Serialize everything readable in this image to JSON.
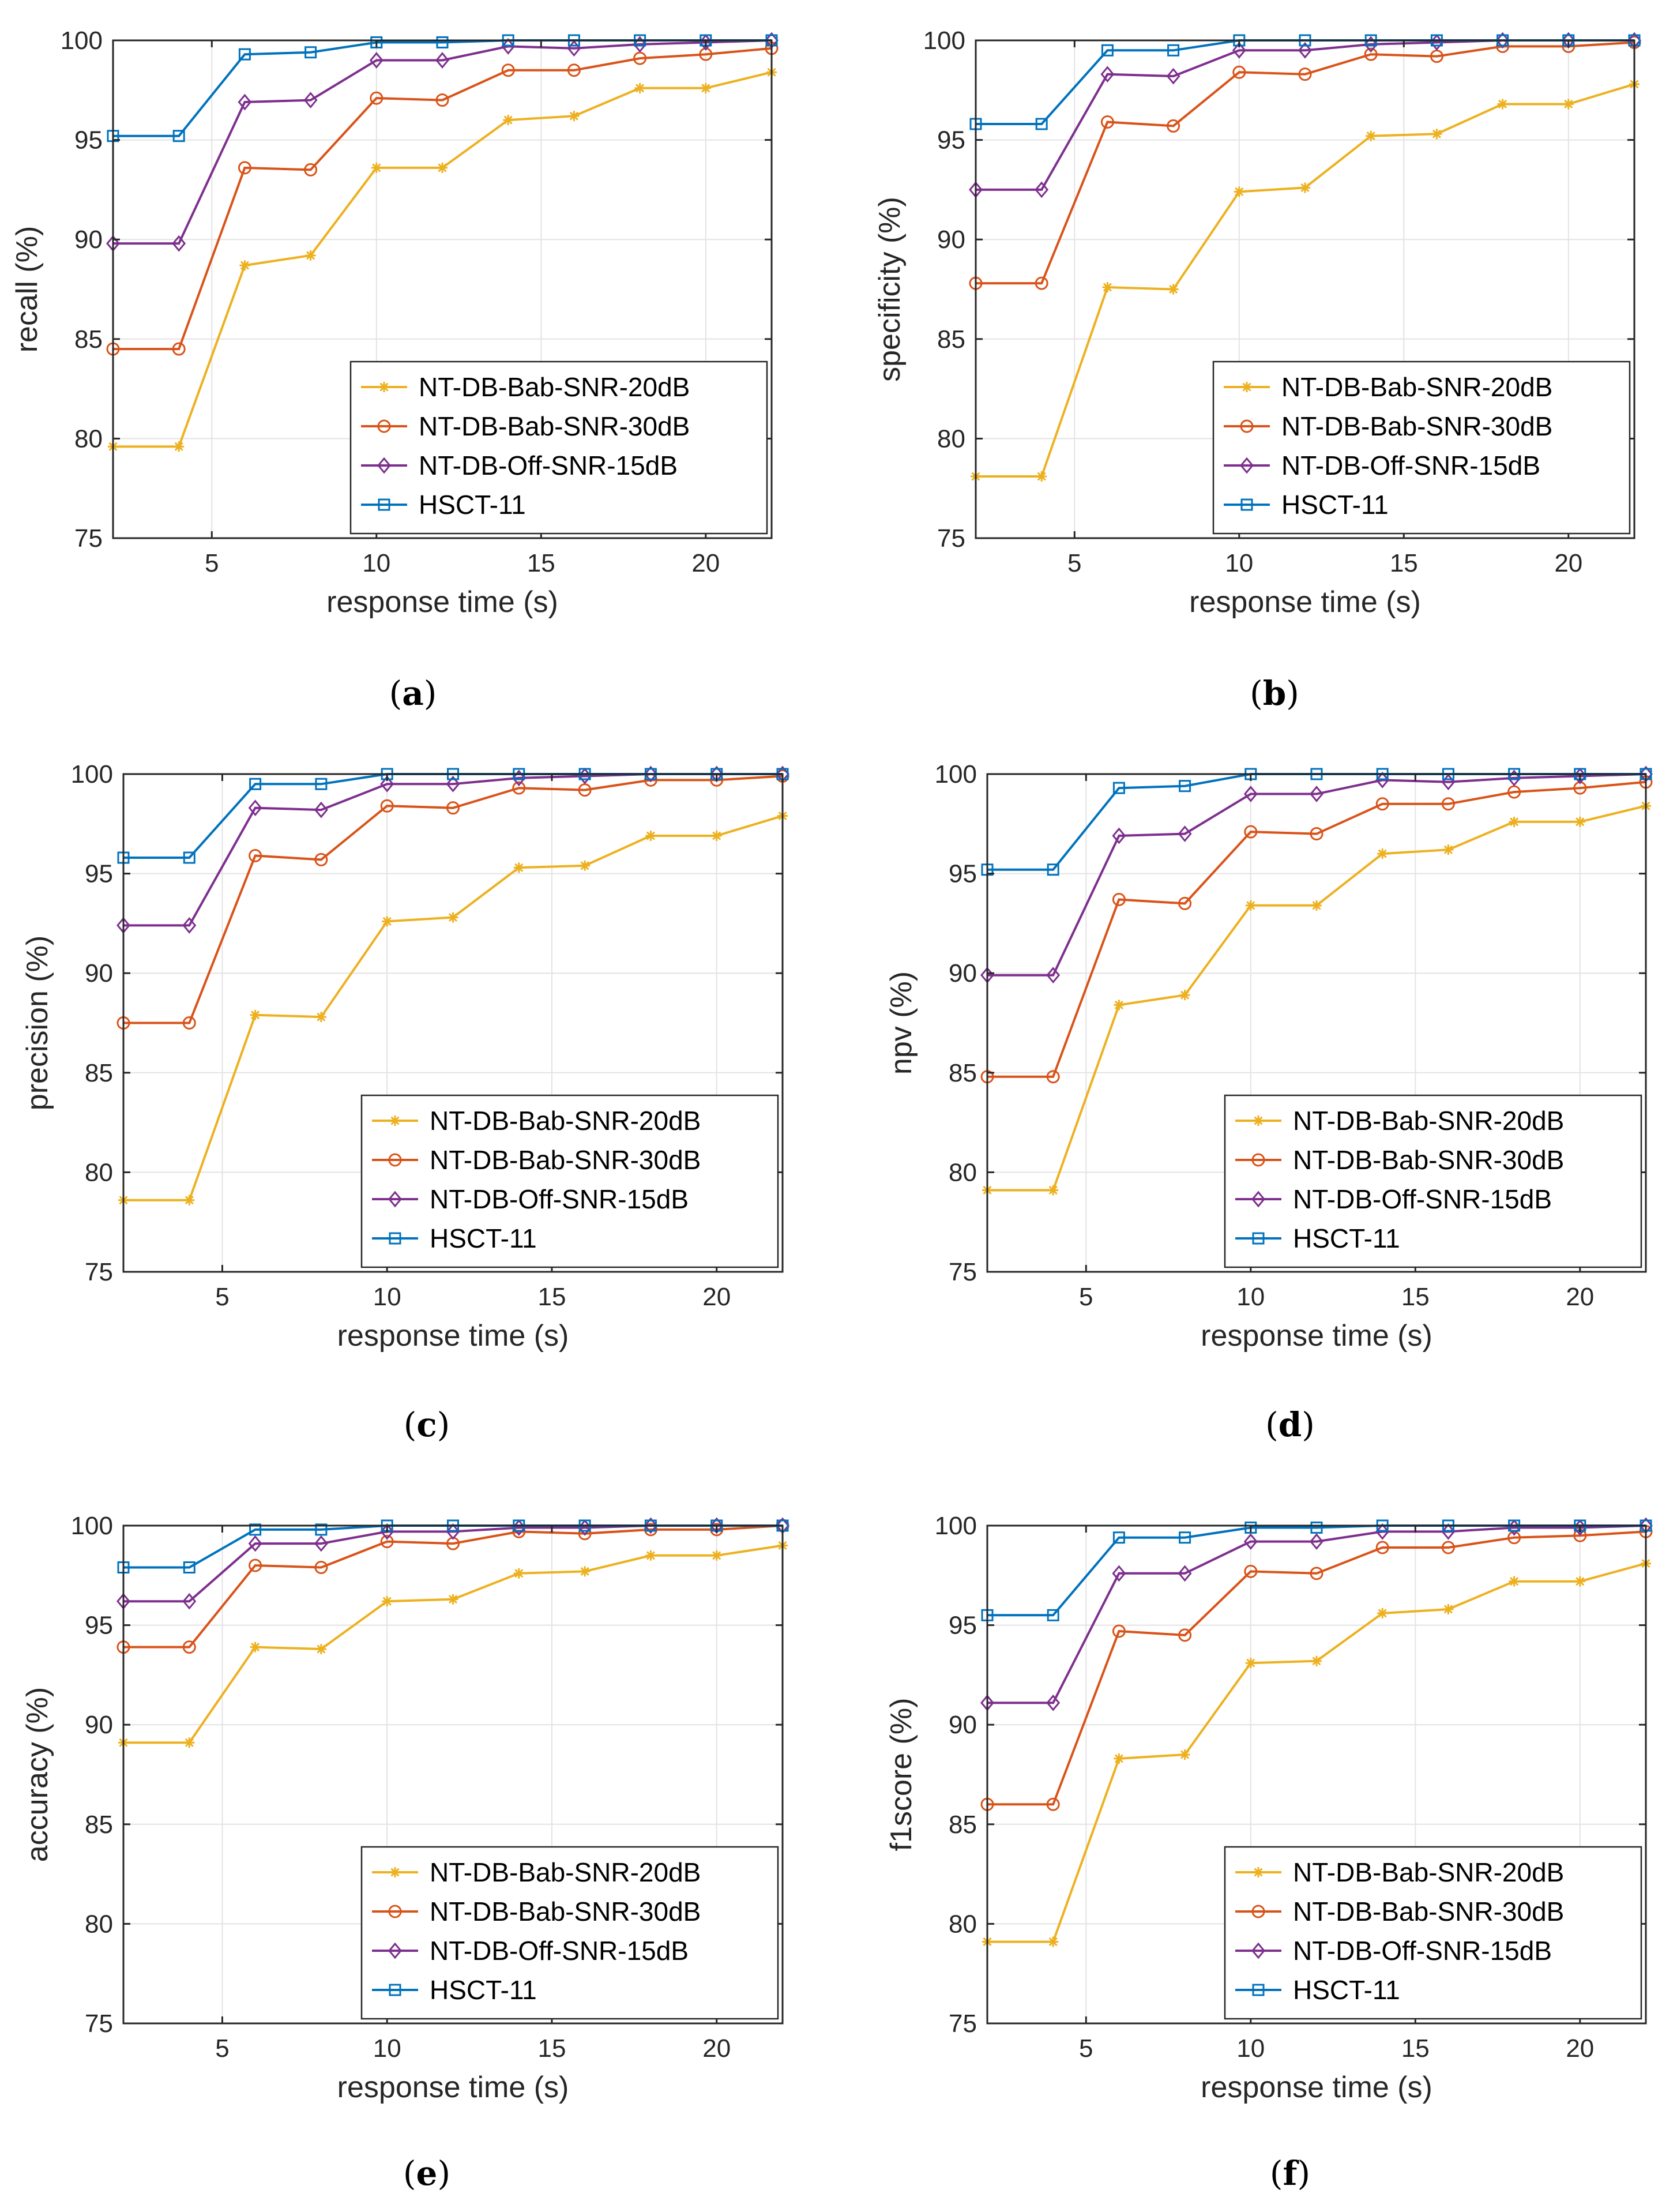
{
  "chart_data": [
    {
      "type": "line",
      "panel_label": "a",
      "xlabel": "response time (s)",
      "ylabel": "recall (%)",
      "xlim": [
        2,
        22
      ],
      "ylim": [
        75,
        100
      ],
      "xticks": [
        5,
        10,
        15,
        20
      ],
      "yticks": [
        75,
        80,
        85,
        90,
        95,
        100
      ],
      "grid": true,
      "legend_location": "bottom-right",
      "x": [
        2,
        4,
        6,
        8,
        10,
        12,
        14,
        16,
        18,
        20,
        22
      ],
      "series": [
        {
          "name": "NT-DB-Bab-SNR-20dB",
          "color": "#EDB120",
          "marker": "asterisk",
          "values": [
            79.6,
            79.6,
            88.7,
            89.2,
            93.6,
            93.6,
            96.0,
            96.2,
            97.6,
            97.6,
            98.4
          ]
        },
        {
          "name": "NT-DB-Bab-SNR-30dB",
          "color": "#D95319",
          "marker": "circle",
          "values": [
            84.5,
            84.5,
            93.6,
            93.5,
            97.1,
            97.0,
            98.5,
            98.5,
            99.1,
            99.3,
            99.6
          ]
        },
        {
          "name": "NT-DB-Off-SNR-15dB",
          "color": "#7E2F8E",
          "marker": "diamond",
          "values": [
            89.8,
            89.8,
            96.9,
            97.0,
            99.0,
            99.0,
            99.7,
            99.6,
            99.8,
            99.9,
            100.0
          ]
        },
        {
          "name": "HSCT-11",
          "color": "#0072BD",
          "marker": "square",
          "values": [
            95.2,
            95.2,
            99.3,
            99.4,
            99.9,
            99.9,
            100.0,
            100.0,
            100.0,
            100.0,
            100.0
          ]
        }
      ]
    },
    {
      "type": "line",
      "panel_label": "b",
      "xlabel": "response time (s)",
      "ylabel": "specificity (%)",
      "xlim": [
        2,
        22
      ],
      "ylim": [
        75,
        100
      ],
      "xticks": [
        5,
        10,
        15,
        20
      ],
      "yticks": [
        75,
        80,
        85,
        90,
        95,
        100
      ],
      "grid": true,
      "legend_location": "bottom-right",
      "x": [
        2,
        4,
        6,
        8,
        10,
        12,
        14,
        16,
        18,
        20,
        22
      ],
      "series": [
        {
          "name": "NT-DB-Bab-SNR-20dB",
          "color": "#EDB120",
          "marker": "asterisk",
          "values": [
            78.1,
            78.1,
            87.6,
            87.5,
            92.4,
            92.6,
            95.2,
            95.3,
            96.8,
            96.8,
            97.8
          ]
        },
        {
          "name": "NT-DB-Bab-SNR-30dB",
          "color": "#D95319",
          "marker": "circle",
          "values": [
            87.8,
            87.8,
            95.9,
            95.7,
            98.4,
            98.3,
            99.3,
            99.2,
            99.7,
            99.7,
            99.9
          ]
        },
        {
          "name": "NT-DB-Off-SNR-15dB",
          "color": "#7E2F8E",
          "marker": "diamond",
          "values": [
            92.5,
            92.5,
            98.3,
            98.2,
            99.5,
            99.5,
            99.8,
            99.9,
            100.0,
            100.0,
            100.0
          ]
        },
        {
          "name": "HSCT-11",
          "color": "#0072BD",
          "marker": "square",
          "values": [
            95.8,
            95.8,
            99.5,
            99.5,
            100.0,
            100.0,
            100.0,
            100.0,
            100.0,
            100.0,
            100.0
          ]
        }
      ]
    },
    {
      "type": "line",
      "panel_label": "c",
      "xlabel": "response time (s)",
      "ylabel": "precision (%)",
      "xlim": [
        2,
        22
      ],
      "ylim": [
        75,
        100
      ],
      "xticks": [
        5,
        10,
        15,
        20
      ],
      "yticks": [
        75,
        80,
        85,
        90,
        95,
        100
      ],
      "grid": true,
      "legend_location": "bottom-right",
      "x": [
        2,
        4,
        6,
        8,
        10,
        12,
        14,
        16,
        18,
        20,
        22
      ],
      "series": [
        {
          "name": "NT-DB-Bab-SNR-20dB",
          "color": "#EDB120",
          "marker": "asterisk",
          "values": [
            78.6,
            78.6,
            87.9,
            87.8,
            92.6,
            92.8,
            95.3,
            95.4,
            96.9,
            96.9,
            97.9
          ]
        },
        {
          "name": "NT-DB-Bab-SNR-30dB",
          "color": "#D95319",
          "marker": "circle",
          "values": [
            87.5,
            87.5,
            95.9,
            95.7,
            98.4,
            98.3,
            99.3,
            99.2,
            99.7,
            99.7,
            99.9
          ]
        },
        {
          "name": "NT-DB-Off-SNR-15dB",
          "color": "#7E2F8E",
          "marker": "diamond",
          "values": [
            92.4,
            92.4,
            98.3,
            98.2,
            99.5,
            99.5,
            99.8,
            99.9,
            100.0,
            100.0,
            100.0
          ]
        },
        {
          "name": "HSCT-11",
          "color": "#0072BD",
          "marker": "square",
          "values": [
            95.8,
            95.8,
            99.5,
            99.5,
            100.0,
            100.0,
            100.0,
            100.0,
            100.0,
            100.0,
            100.0
          ]
        }
      ]
    },
    {
      "type": "line",
      "panel_label": "d",
      "xlabel": "response time (s)",
      "ylabel": "npv (%)",
      "xlim": [
        2,
        22
      ],
      "ylim": [
        75,
        100
      ],
      "xticks": [
        5,
        10,
        15,
        20
      ],
      "yticks": [
        75,
        80,
        85,
        90,
        95,
        100
      ],
      "grid": true,
      "legend_location": "bottom-right",
      "x": [
        2,
        4,
        6,
        8,
        10,
        12,
        14,
        16,
        18,
        20,
        22
      ],
      "series": [
        {
          "name": "NT-DB-Bab-SNR-20dB",
          "color": "#EDB120",
          "marker": "asterisk",
          "values": [
            79.1,
            79.1,
            88.4,
            88.9,
            93.4,
            93.4,
            96.0,
            96.2,
            97.6,
            97.6,
            98.4
          ]
        },
        {
          "name": "NT-DB-Bab-SNR-30dB",
          "color": "#D95319",
          "marker": "circle",
          "values": [
            84.8,
            84.8,
            93.7,
            93.5,
            97.1,
            97.0,
            98.5,
            98.5,
            99.1,
            99.3,
            99.6
          ]
        },
        {
          "name": "NT-DB-Off-SNR-15dB",
          "color": "#7E2F8E",
          "marker": "diamond",
          "values": [
            89.9,
            89.9,
            96.9,
            97.0,
            99.0,
            99.0,
            99.7,
            99.6,
            99.8,
            99.9,
            100.0
          ]
        },
        {
          "name": "HSCT-11",
          "color": "#0072BD",
          "marker": "square",
          "values": [
            95.2,
            95.2,
            99.3,
            99.4,
            100.0,
            100.0,
            100.0,
            100.0,
            100.0,
            100.0,
            100.0
          ]
        }
      ]
    },
    {
      "type": "line",
      "panel_label": "e",
      "xlabel": "response time (s)",
      "ylabel": "accuracy (%)",
      "xlim": [
        2,
        22
      ],
      "ylim": [
        75,
        100
      ],
      "xticks": [
        5,
        10,
        15,
        20
      ],
      "yticks": [
        75,
        80,
        85,
        90,
        95,
        100
      ],
      "grid": true,
      "legend_location": "bottom-right",
      "x": [
        2,
        4,
        6,
        8,
        10,
        12,
        14,
        16,
        18,
        20,
        22
      ],
      "series": [
        {
          "name": "NT-DB-Bab-SNR-20dB",
          "color": "#EDB120",
          "marker": "asterisk",
          "values": [
            89.1,
            89.1,
            93.9,
            93.8,
            96.2,
            96.3,
            97.6,
            97.7,
            98.5,
            98.5,
            99.0
          ]
        },
        {
          "name": "NT-DB-Bab-SNR-30dB",
          "color": "#D95319",
          "marker": "circle",
          "values": [
            93.9,
            93.9,
            98.0,
            97.9,
            99.2,
            99.1,
            99.7,
            99.6,
            99.8,
            99.8,
            100.0
          ]
        },
        {
          "name": "NT-DB-Off-SNR-15dB",
          "color": "#7E2F8E",
          "marker": "diamond",
          "values": [
            96.2,
            96.2,
            99.1,
            99.1,
            99.7,
            99.7,
            99.9,
            99.9,
            100.0,
            100.0,
            100.0
          ]
        },
        {
          "name": "HSCT-11",
          "color": "#0072BD",
          "marker": "square",
          "values": [
            97.9,
            97.9,
            99.8,
            99.8,
            100.0,
            100.0,
            100.0,
            100.0,
            100.0,
            100.0,
            100.0
          ]
        }
      ]
    },
    {
      "type": "line",
      "panel_label": "f",
      "xlabel": "response time (s)",
      "ylabel": "f1score (%)",
      "xlim": [
        2,
        22
      ],
      "ylim": [
        75,
        100
      ],
      "xticks": [
        5,
        10,
        15,
        20
      ],
      "yticks": [
        75,
        80,
        85,
        90,
        95,
        100
      ],
      "grid": true,
      "legend_location": "bottom-right",
      "x": [
        2,
        4,
        6,
        8,
        10,
        12,
        14,
        16,
        18,
        20,
        22
      ],
      "series": [
        {
          "name": "NT-DB-Bab-SNR-20dB",
          "color": "#EDB120",
          "marker": "asterisk",
          "values": [
            79.1,
            79.1,
            88.3,
            88.5,
            93.1,
            93.2,
            95.6,
            95.8,
            97.2,
            97.2,
            98.1
          ]
        },
        {
          "name": "NT-DB-Bab-SNR-30dB",
          "color": "#D95319",
          "marker": "circle",
          "values": [
            86.0,
            86.0,
            94.7,
            94.5,
            97.7,
            97.6,
            98.9,
            98.9,
            99.4,
            99.5,
            99.7
          ]
        },
        {
          "name": "NT-DB-Off-SNR-15dB",
          "color": "#7E2F8E",
          "marker": "diamond",
          "values": [
            91.1,
            91.1,
            97.6,
            97.6,
            99.2,
            99.2,
            99.7,
            99.7,
            99.9,
            99.9,
            100.0
          ]
        },
        {
          "name": "HSCT-11",
          "color": "#0072BD",
          "marker": "square",
          "values": [
            95.5,
            95.5,
            99.4,
            99.4,
            99.9,
            99.9,
            100.0,
            100.0,
            100.0,
            100.0,
            100.0
          ]
        }
      ]
    }
  ]
}
